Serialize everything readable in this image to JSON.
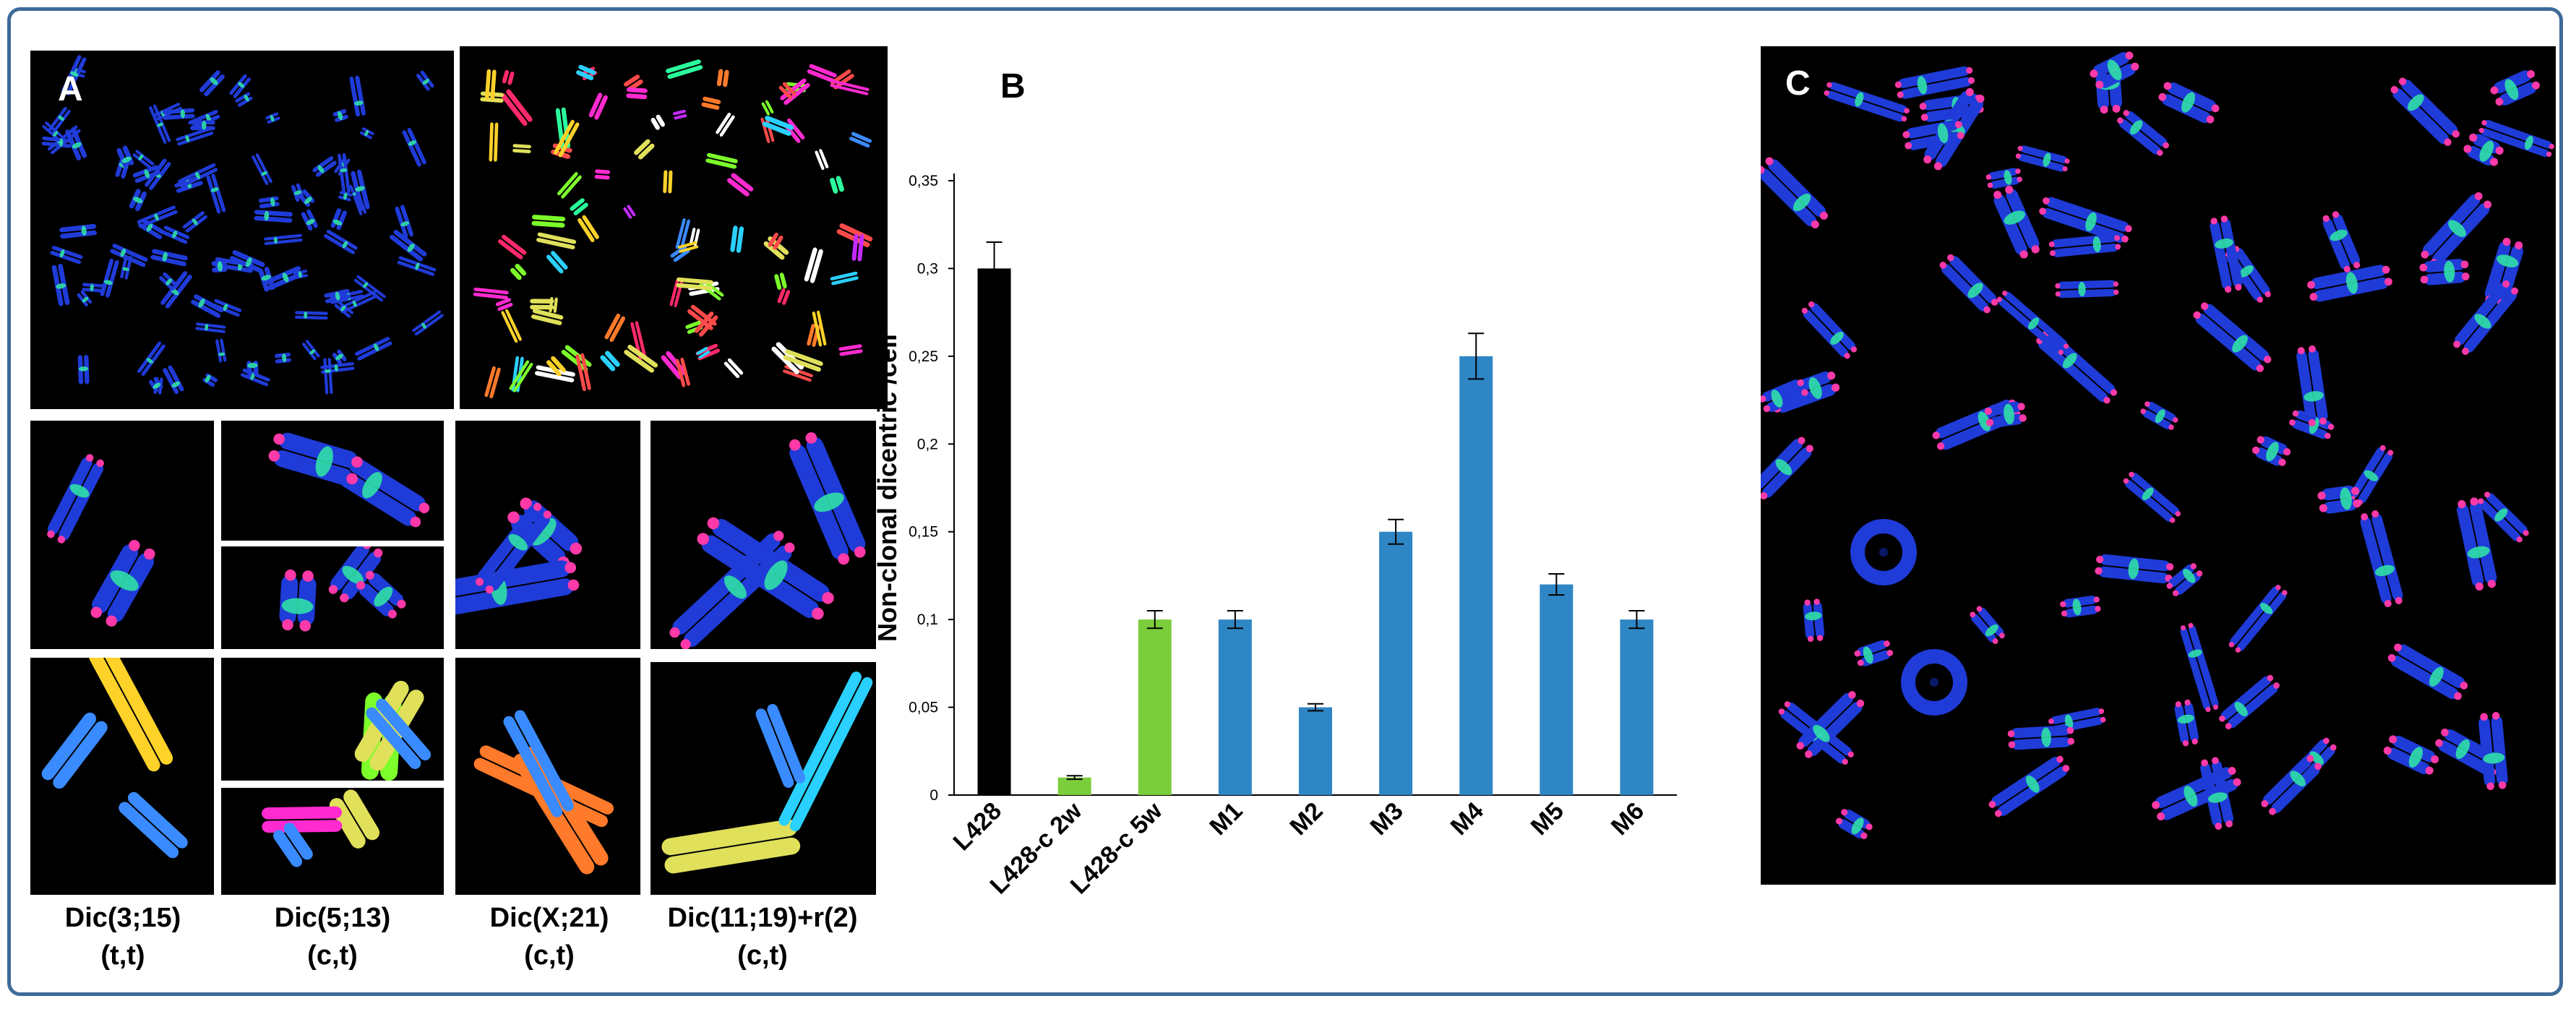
{
  "panels": {
    "a": {
      "letter": "A"
    },
    "b": {
      "letter": "B"
    },
    "c": {
      "letter": "C"
    }
  },
  "captions": [
    {
      "line1": "Dic(3;15)",
      "line2": "(t,t)"
    },
    {
      "line1": "Dic(5;13)",
      "line2": "(c,t)"
    },
    {
      "line1": "Dic(X;21)",
      "line2": "(c,t)"
    },
    {
      "line1": "Dic(11;19)+r(2)",
      "line2": "(c,t)"
    }
  ],
  "chart_data": {
    "type": "bar",
    "ylabel": "Non-clonal dicentric /cell",
    "ylim": [
      0,
      0.35
    ],
    "yticks": [
      "0",
      "0,05",
      "0,1",
      "0,15",
      "0,2",
      "0,25",
      "0,3",
      "0,35"
    ],
    "categories": [
      "L428",
      "L428-c 2w",
      "L428-c 5w",
      "M1",
      "M2",
      "M3",
      "M4",
      "M5",
      "M6"
    ],
    "values": [
      0.3,
      0.01,
      0.1,
      0.1,
      0.05,
      0.15,
      0.25,
      0.12,
      0.1
    ],
    "errors": [
      0.015,
      0.001,
      0.005,
      0.005,
      0.002,
      0.007,
      0.013,
      0.006,
      0.005
    ],
    "colors": [
      "#000000",
      "#7ccd3c",
      "#7ccd3c",
      "#2f86c4",
      "#2f86c4",
      "#2f86c4",
      "#2f86c4",
      "#2f86c4",
      "#2f86c4"
    ],
    "grid": false
  },
  "colors": {
    "frame": "#3d6b99",
    "chromosome_blue": "#1f3bd8",
    "centromere": "#2fe0a8",
    "telomere": "#ff3aa8"
  }
}
